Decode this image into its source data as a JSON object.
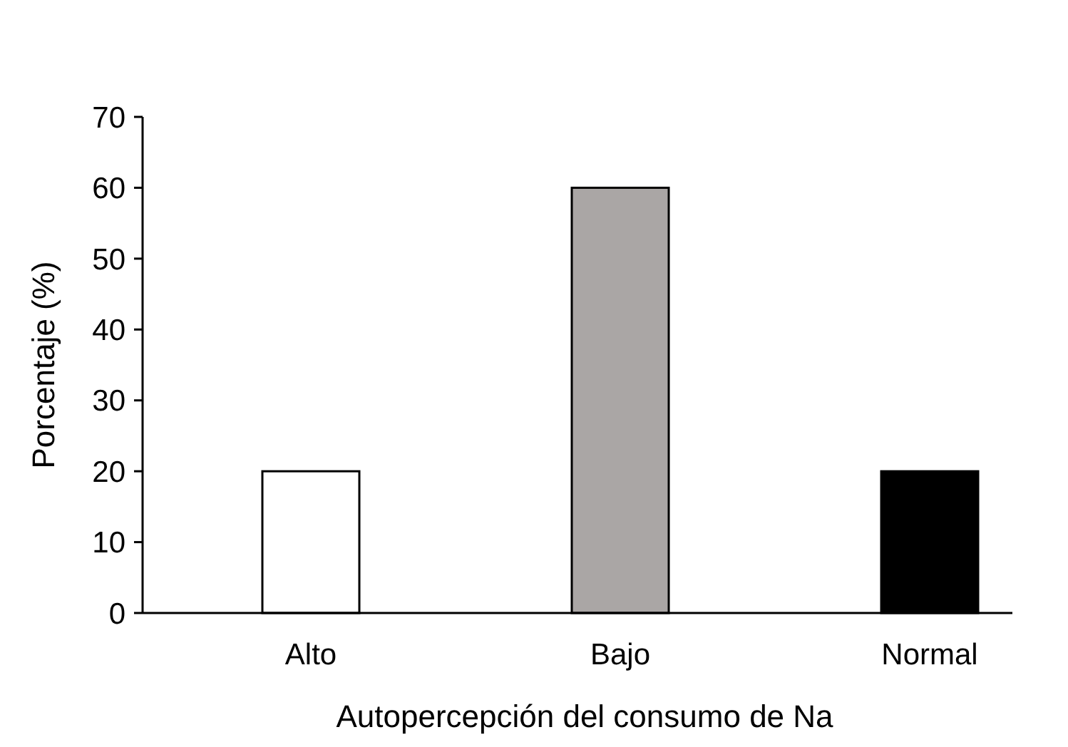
{
  "chart_data": {
    "type": "bar",
    "xlabel": "Autopercepción del consumo de Na",
    "ylabel": "Porcentaje (%)",
    "categories": [
      "Alto",
      "Bajo",
      "Normal"
    ],
    "values": [
      20,
      60,
      20
    ],
    "colors": [
      "#ffffff",
      "#aaa6a5",
      "#000000"
    ],
    "ylim": [
      0,
      70
    ],
    "yticks": [
      0,
      10,
      20,
      30,
      40,
      50,
      60,
      70
    ],
    "grid": false
  }
}
